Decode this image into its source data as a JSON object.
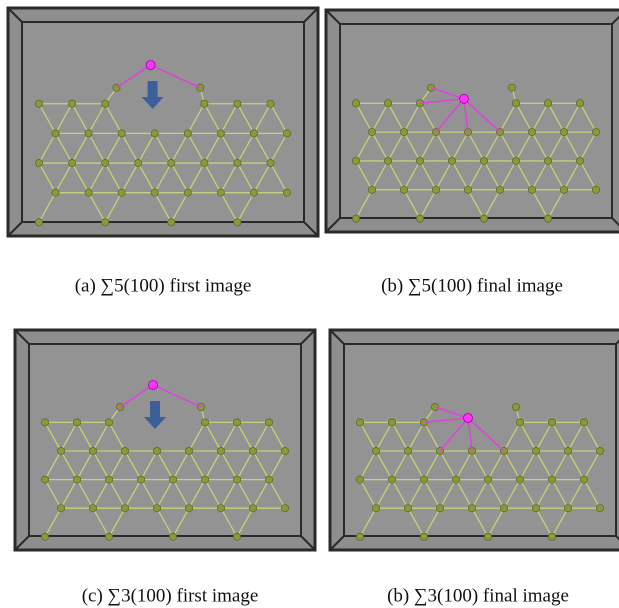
{
  "figure": {
    "panels": [
      {
        "caption": "(a) ∑5(100) first image"
      },
      {
        "caption": "(b) ∑5(100) final image"
      },
      {
        "caption": "(c) ∑3(100) first image"
      },
      {
        "caption": "(b) ∑3(100) final image"
      }
    ]
  }
}
